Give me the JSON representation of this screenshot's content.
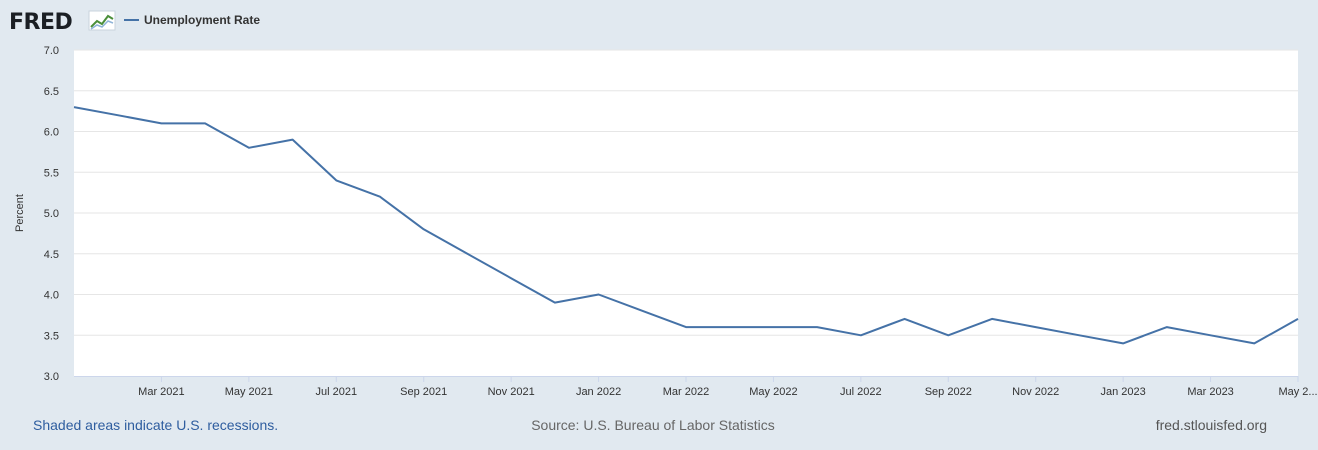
{
  "brand": {
    "logo": "FRED",
    "site": "fred.stlouisfed.org"
  },
  "footer": {
    "recession_note": "Shaded areas indicate U.S. recessions.",
    "source": "Source: U.S. Bureau of Labor Statistics",
    "site": "fred.stlouisfed.org"
  },
  "colors": {
    "series": "#4572a7",
    "background": "#e1e9f0",
    "plot": "#ffffff",
    "link": "#2e5d9f",
    "source_text": "#666666"
  },
  "chart_data": {
    "type": "line",
    "title": "",
    "xlabel": "",
    "ylabel": "Percent",
    "ylim": [
      3.0,
      7.0
    ],
    "yticks": [
      "3.0",
      "3.5",
      "4.0",
      "4.5",
      "5.0",
      "5.5",
      "6.0",
      "6.5",
      "7.0"
    ],
    "grid": true,
    "legend": "top-left",
    "xticks": [
      "Mar 2021",
      "May 2021",
      "Jul 2021",
      "Sep 2021",
      "Nov 2021",
      "Jan 2022",
      "Mar 2022",
      "May 2022",
      "Jul 2022",
      "Sep 2022",
      "Nov 2022",
      "Jan 2023",
      "Mar 2023",
      "May 2..."
    ],
    "x": [
      "2021-01",
      "2021-02",
      "2021-03",
      "2021-04",
      "2021-05",
      "2021-06",
      "2021-07",
      "2021-08",
      "2021-09",
      "2021-10",
      "2021-11",
      "2021-12",
      "2022-01",
      "2022-02",
      "2022-03",
      "2022-04",
      "2022-05",
      "2022-06",
      "2022-07",
      "2022-08",
      "2022-09",
      "2022-10",
      "2022-11",
      "2022-12",
      "2023-01",
      "2023-02",
      "2023-03",
      "2023-04",
      "2023-05"
    ],
    "series": [
      {
        "name": "Unemployment Rate",
        "values": [
          6.3,
          6.2,
          6.1,
          6.1,
          5.8,
          5.9,
          5.4,
          5.2,
          4.8,
          4.5,
          4.2,
          3.9,
          4.0,
          3.8,
          3.6,
          3.6,
          3.6,
          3.6,
          3.5,
          3.7,
          3.5,
          3.7,
          3.6,
          3.5,
          3.4,
          3.6,
          3.5,
          3.4,
          3.7
        ]
      }
    ]
  }
}
